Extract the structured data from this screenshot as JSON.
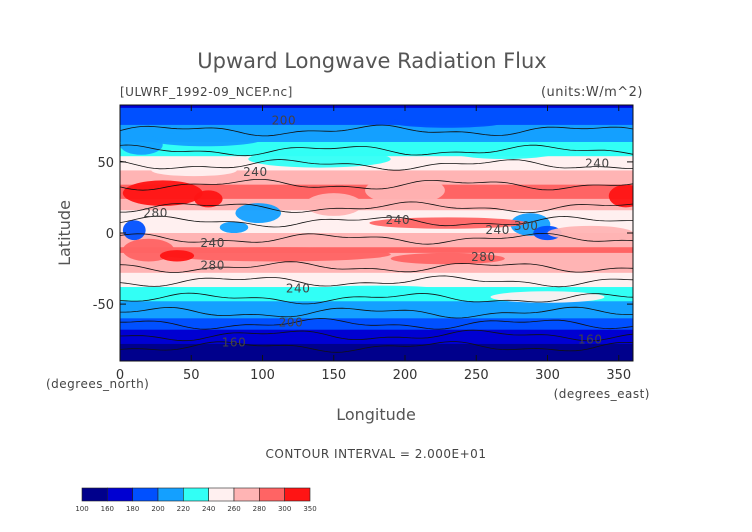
{
  "chart_data": {
    "type": "heatmap",
    "title": "Upward Longwave Radiation Flux",
    "file_label": "[ULWRF_1992-09_NCEP.nc]",
    "units_label": "(units:W/m^2)",
    "xlabel": "Longitude",
    "ylabel": "Latitude",
    "x_unit_label": "(degrees_east)",
    "y_unit_label": "(degrees_north)",
    "xlim": [
      0,
      360
    ],
    "ylim": [
      -90,
      90
    ],
    "x_ticks": [
      0,
      50,
      100,
      150,
      200,
      250,
      300,
      350
    ],
    "y_ticks": [
      -50,
      0,
      50
    ],
    "contour_interval_text": "CONTOUR INTERVAL = 2.000E+01",
    "colorbar": {
      "levels": [
        100,
        160,
        180,
        200,
        220,
        240,
        260,
        280,
        300,
        350
      ],
      "level_labels": [
        "100",
        "160",
        "180",
        "200",
        "220",
        "240",
        "260",
        "280",
        "300",
        "350"
      ],
      "colors": [
        "#00008c",
        "#0000d2",
        "#0050ff",
        "#14a0ff",
        "#32fff5",
        "#fff0f0",
        "#ffb4b4",
        "#ff6464",
        "#ff1414"
      ]
    },
    "zonal_profile": [
      {
        "lat": 90,
        "value": 175
      },
      {
        "lat": 80,
        "value": 195
      },
      {
        "lat": 72,
        "value": 205
      },
      {
        "lat": 62,
        "value": 222
      },
      {
        "lat": 52,
        "value": 245
      },
      {
        "lat": 42,
        "value": 262
      },
      {
        "lat": 32,
        "value": 282
      },
      {
        "lat": 25,
        "value": 283
      },
      {
        "lat": 15,
        "value": 258
      },
      {
        "lat": 7,
        "value": 245
      },
      {
        "lat": -2,
        "value": 262
      },
      {
        "lat": -12,
        "value": 282
      },
      {
        "lat": -20,
        "value": 272
      },
      {
        "lat": -30,
        "value": 255
      },
      {
        "lat": -40,
        "value": 234
      },
      {
        "lat": -50,
        "value": 218
      },
      {
        "lat": -58,
        "value": 204
      },
      {
        "lat": -66,
        "value": 186
      },
      {
        "lat": -74,
        "value": 168
      },
      {
        "lat": -84,
        "value": 150
      },
      {
        "lat": -90,
        "value": 142
      }
    ],
    "contour_labels": [
      {
        "text": "200",
        "lon": 115,
        "lat": 79
      },
      {
        "text": "240",
        "lon": 95,
        "lat": 43
      },
      {
        "text": "240",
        "lon": 335,
        "lat": 49
      },
      {
        "text": "280",
        "lon": 25,
        "lat": 14
      },
      {
        "text": "240",
        "lon": 65,
        "lat": -7
      },
      {
        "text": "240",
        "lon": 195,
        "lat": 9
      },
      {
        "text": "240",
        "lon": 265,
        "lat": 2
      },
      {
        "text": "300",
        "lon": 285,
        "lat": 5
      },
      {
        "text": "280",
        "lon": 65,
        "lat": -23
      },
      {
        "text": "280",
        "lon": 255,
        "lat": -17
      },
      {
        "text": "240",
        "lon": 125,
        "lat": -39
      },
      {
        "text": "200",
        "lon": 120,
        "lat": -63
      },
      {
        "text": "160",
        "lon": 80,
        "lat": -77
      },
      {
        "text": "160",
        "lon": 330,
        "lat": -75
      }
    ]
  }
}
